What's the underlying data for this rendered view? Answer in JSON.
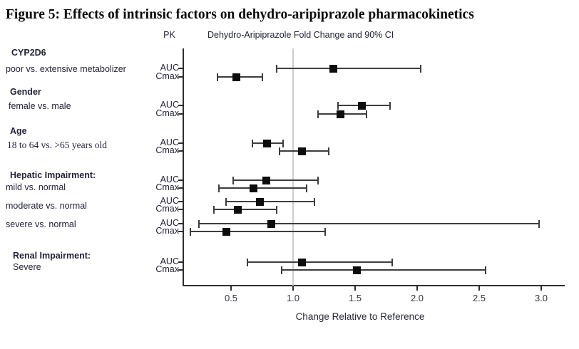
{
  "figure": {
    "title": "Figure 5:  Effects of intrinsic factors on dehydro-aripiprazole pharmacokinetics",
    "pk_header": "PK",
    "ci_header": "Dehydro-Aripiprazole Fold Change and 90% CI",
    "xlabel": "Change Relative to Reference"
  },
  "colors": {
    "marker": "#0d0d0d",
    "line": "#3d3d3d",
    "axis": "#2e2e2e",
    "reference_line": "#cccccc",
    "text": "#23233a"
  },
  "chart_data": {
    "type": "forest",
    "title": "Dehydro-Aripiprazole Fold Change and 90% CI",
    "xlabel": "Change Relative to Reference",
    "x_ticks": [
      0.5,
      1.0,
      1.5,
      2.0,
      2.5,
      3.0
    ],
    "xlim": [
      0.12,
      3.19
    ],
    "reference_line": 1.0,
    "grid": false,
    "legend": false,
    "groups": [
      {
        "heading": "CYP2D6",
        "subheading": "poor vs. extensive metabolizer",
        "rows": [
          {
            "pk": "AUC",
            "estimate": 1.32,
            "ci_low": 0.87,
            "ci_high": 2.03
          },
          {
            "pk": "Cmax",
            "estimate": 0.54,
            "ci_low": 0.39,
            "ci_high": 0.75
          }
        ]
      },
      {
        "heading": "Gender",
        "subheading": "female vs. male",
        "rows": [
          {
            "pk": "AUC",
            "estimate": 1.55,
            "ci_low": 1.36,
            "ci_high": 1.78
          },
          {
            "pk": "Cmax",
            "estimate": 1.38,
            "ci_low": 1.2,
            "ci_high": 1.59
          }
        ]
      },
      {
        "heading": "Age",
        "subheading": "18 to 64 vs. >65 years old",
        "rows": [
          {
            "pk": "AUC",
            "estimate": 0.79,
            "ci_low": 0.67,
            "ci_high": 0.92
          },
          {
            "pk": "Cmax",
            "estimate": 1.07,
            "ci_low": 0.89,
            "ci_high": 1.29
          }
        ]
      },
      {
        "heading": "Hepatic Impairment:",
        "subheading": "mild vs. normal",
        "rows": [
          {
            "pk": "AUC",
            "estimate": 0.78,
            "ci_low": 0.52,
            "ci_high": 1.2
          },
          {
            "pk": "Cmax",
            "estimate": 0.68,
            "ci_low": 0.4,
            "ci_high": 1.11
          }
        ]
      },
      {
        "heading": "",
        "subheading": "moderate vs. normal",
        "rows": [
          {
            "pk": "AUC",
            "estimate": 0.73,
            "ci_low": 0.46,
            "ci_high": 1.17
          },
          {
            "pk": "Cmax",
            "estimate": 0.55,
            "ci_low": 0.36,
            "ci_high": 0.87
          }
        ]
      },
      {
        "heading": "",
        "subheading": "severe vs. normal",
        "rows": [
          {
            "pk": "AUC",
            "estimate": 0.82,
            "ci_low": 0.24,
            "ci_high": 2.98
          },
          {
            "pk": "Cmax",
            "estimate": 0.46,
            "ci_low": 0.17,
            "ci_high": 1.26
          }
        ]
      },
      {
        "heading": "Renal Impairment:",
        "subheading": "Severe",
        "rows": [
          {
            "pk": "AUC",
            "estimate": 1.07,
            "ci_low": 0.63,
            "ci_high": 1.8
          },
          {
            "pk": "Cmax",
            "estimate": 1.51,
            "ci_low": 0.91,
            "ci_high": 2.55
          }
        ]
      }
    ]
  }
}
